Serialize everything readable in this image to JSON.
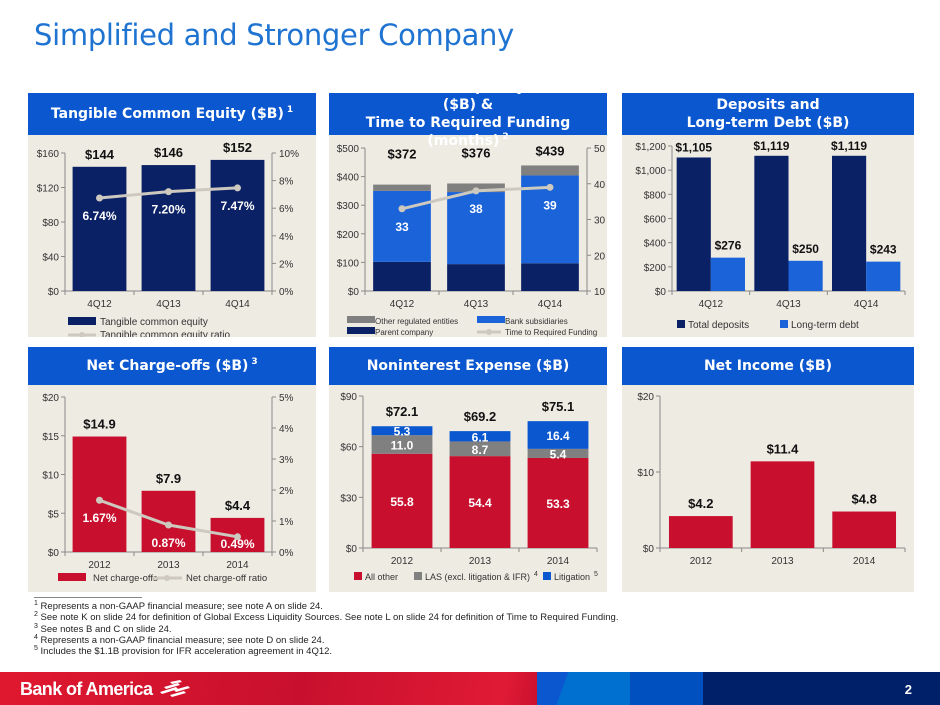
{
  "page": {
    "title": "Simplified and Stronger Company",
    "page_number": "2"
  },
  "brand": {
    "name": "Bank of America",
    "red": "#c8102e",
    "blue": "#0b57d0",
    "navy": "#00206a"
  },
  "footnotes": [
    {
      "mark": "1",
      "text": "Represents a non-GAAP financial measure; see note A on slide 24."
    },
    {
      "mark": "2",
      "text": "See note K on slide 24 for definition of Global Excess Liquidity Sources. See note L on slide 24 for definition of Time to Required Funding."
    },
    {
      "mark": "3",
      "text": "See notes B and C on slide 24."
    },
    {
      "mark": "4",
      "text": "Represents a non-GAAP financial measure; see note D on slide 24."
    },
    {
      "mark": "5",
      "text": "Includes the $1.1B provision for IFR acceleration agreement in 4Q12."
    }
  ],
  "chart_data": [
    {
      "type": "bar",
      "title": "Tangible Common Equity ($B)",
      "title_note": "1",
      "categories": [
        "4Q12",
        "4Q13",
        "4Q14"
      ],
      "ylim": [
        0,
        160
      ],
      "yticks": [
        "$0",
        "$40",
        "$80",
        "$120",
        "$160"
      ],
      "y2lim": [
        0,
        10
      ],
      "y2ticks": [
        "0%",
        "2%",
        "4%",
        "6%",
        "8%",
        "10%"
      ],
      "grid": false,
      "legend": "bottom",
      "series": [
        {
          "name": "Tangible common equity",
          "kind": "bar",
          "color": "#0b2166",
          "values": [
            144,
            146,
            152
          ],
          "labels": [
            "$144",
            "$146",
            "$152"
          ]
        },
        {
          "name": "Tangible common equity ratio",
          "kind": "line",
          "axis": "right",
          "color": "#cdc9bf",
          "values": [
            6.74,
            7.2,
            7.47
          ],
          "labels": [
            "6.74%",
            "7.20%",
            "7.47%"
          ]
        }
      ]
    },
    {
      "type": "bar",
      "stacked": true,
      "title": "Global Excess Liquidity Sources ($B) &",
      "title2": "Time to Required Funding (months)",
      "title_note": "2",
      "categories": [
        "4Q12",
        "4Q13",
        "4Q14"
      ],
      "ylim": [
        0,
        500
      ],
      "yticks": [
        "$0",
        "$100",
        "$200",
        "$300",
        "$400",
        "$500"
      ],
      "y2lim": [
        10,
        50
      ],
      "y2ticks": [
        "10",
        "20",
        "30",
        "40",
        "50"
      ],
      "grid": false,
      "legend": "bottom",
      "totals": [
        "$372",
        "$376",
        "$439"
      ],
      "series": [
        {
          "name": "Parent company",
          "kind": "bar",
          "color": "#0b2166",
          "values": [
            102,
            94,
            97
          ]
        },
        {
          "name": "Bank subsidiaries",
          "kind": "bar",
          "color": "#1a63d8",
          "values": [
            248,
            252,
            307
          ]
        },
        {
          "name": "Other regulated entities",
          "kind": "bar",
          "color": "#808080",
          "values": [
            22,
            30,
            35
          ]
        },
        {
          "name": "Time to Required Funding",
          "kind": "line",
          "axis": "right",
          "color": "#cdc9bf",
          "values": [
            33,
            38,
            39
          ],
          "labels": [
            "33",
            "38",
            "39"
          ]
        }
      ]
    },
    {
      "type": "bar",
      "grouped": true,
      "title": "Deposits and",
      "title2": "Long-term Debt ($B)",
      "categories": [
        "4Q12",
        "4Q13",
        "4Q14"
      ],
      "ylim": [
        0,
        1200
      ],
      "yticks": [
        "$0",
        "$200",
        "$400",
        "$600",
        "$800",
        "$1,000",
        "$1,200"
      ],
      "grid": false,
      "legend": "bottom",
      "series": [
        {
          "name": "Total deposits",
          "kind": "bar",
          "color": "#0b2166",
          "values": [
            1105,
            1119,
            1119
          ],
          "labels": [
            "$1,105",
            "$1,119",
            "$1,119"
          ]
        },
        {
          "name": "Long-term debt",
          "kind": "bar",
          "color": "#1a63d8",
          "values": [
            276,
            250,
            243
          ],
          "labels": [
            "$276",
            "$250",
            "$243"
          ]
        }
      ]
    },
    {
      "type": "bar",
      "title": "Net Charge-offs ($B)",
      "title_note": "3",
      "categories": [
        "2012",
        "2013",
        "2014"
      ],
      "ylim": [
        0,
        20
      ],
      "yticks": [
        "$0",
        "$5",
        "$10",
        "$15",
        "$20"
      ],
      "y2lim": [
        0,
        5
      ],
      "y2ticks": [
        "0%",
        "1%",
        "2%",
        "3%",
        "4%",
        "5%"
      ],
      "grid": false,
      "legend": "bottom",
      "series": [
        {
          "name": "Net charge-offs",
          "kind": "bar",
          "color": "#c8102e",
          "values": [
            14.9,
            7.9,
            4.4
          ],
          "labels": [
            "$14.9",
            "$7.9",
            "$4.4"
          ]
        },
        {
          "name": "Net charge-off ratio",
          "kind": "line",
          "axis": "right",
          "color": "#cdc9bf",
          "values": [
            1.67,
            0.87,
            0.49
          ],
          "labels": [
            "1.67%",
            "0.87%",
            "0.49%"
          ]
        }
      ]
    },
    {
      "type": "bar",
      "stacked": true,
      "title": "Noninterest Expense ($B)",
      "categories": [
        "2012",
        "2013",
        "2014"
      ],
      "ylim": [
        0,
        90
      ],
      "yticks": [
        "$0",
        "$30",
        "$60",
        "$90"
      ],
      "grid": false,
      "legend": "bottom",
      "totals": [
        "$72.1",
        "$69.2",
        "$75.1"
      ],
      "series": [
        {
          "name": "All other",
          "kind": "bar",
          "color": "#c8102e",
          "values": [
            55.8,
            54.4,
            53.3
          ],
          "labels": [
            "55.8",
            "54.4",
            "53.3"
          ]
        },
        {
          "name": "LAS (excl. litigation & IFR)",
          "note": "4",
          "kind": "bar",
          "color": "#808080",
          "values": [
            11.0,
            8.7,
            5.4
          ],
          "labels": [
            "11.0",
            "8.7",
            "5.4"
          ]
        },
        {
          "name": "Litigation",
          "note": "5",
          "kind": "bar",
          "color": "#0b57d0",
          "values": [
            5.3,
            6.1,
            16.4
          ],
          "labels": [
            "5.3",
            "6.1",
            "16.4"
          ]
        }
      ]
    },
    {
      "type": "bar",
      "title": "Net Income ($B)",
      "categories": [
        "2012",
        "2013",
        "2014"
      ],
      "ylim": [
        0,
        20
      ],
      "yticks": [
        "$0",
        "$10",
        "$20"
      ],
      "grid": false,
      "legend": "none",
      "series": [
        {
          "name": "Net income",
          "kind": "bar",
          "color": "#c8102e",
          "values": [
            4.2,
            11.4,
            4.8
          ],
          "labels": [
            "$4.2",
            "$11.4",
            "$4.8"
          ]
        }
      ]
    }
  ]
}
